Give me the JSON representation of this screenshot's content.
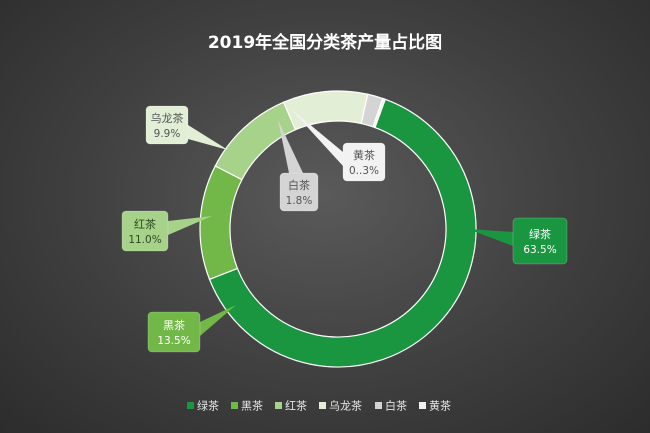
{
  "chart_data": {
    "type": "pie",
    "variant": "donut",
    "title": "2019年全国分类茶产量占比图",
    "legend_position": "bottom",
    "slices": [
      {
        "name": "绿茶",
        "value": 63.5,
        "label": "63.5%",
        "color": "#1a9641"
      },
      {
        "name": "黑茶",
        "value": 13.5,
        "label": "13.5%",
        "color": "#72b848"
      },
      {
        "name": "红茶",
        "value": 11.0,
        "label": "11.0%",
        "color": "#a6d28a"
      },
      {
        "name": "乌龙茶",
        "value": 9.9,
        "label": "9.9%",
        "color": "#e2efd6"
      },
      {
        "name": "白茶",
        "value": 1.8,
        "label": "1.8%",
        "color": "#d4d4d4"
      },
      {
        "name": "黄茶",
        "value": 0.3,
        "label": "0..3%",
        "color": "#f2f2f2"
      }
    ]
  }
}
